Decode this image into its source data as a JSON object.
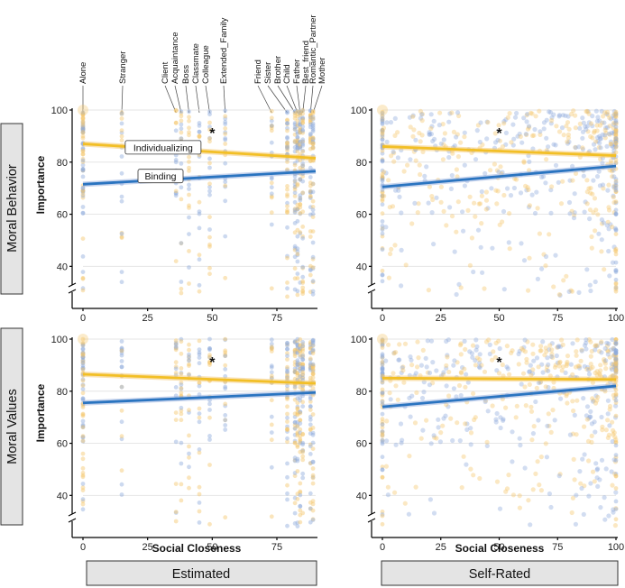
{
  "colors": {
    "individualizing": "#F2BF26",
    "binding": "#2A74C0",
    "ind_points": "#F4C66A",
    "bind_points": "#8FAADC"
  },
  "chart_data": {
    "type": "scatter",
    "layout": "2x2 facet grid",
    "ylabel": "Importance",
    "xlabel": "Social Closeness",
    "rows": [
      "Moral Behavior",
      "Moral Values"
    ],
    "cols": [
      "Estimated",
      "Self-Rated"
    ],
    "series": [
      "Individualizing",
      "Binding"
    ],
    "y_ticks": [
      "40",
      "60",
      "80",
      "100"
    ],
    "x_ticks": [
      "0",
      "25",
      "50",
      "75",
      "100"
    ],
    "estimated_xlim": [
      0,
      90
    ],
    "selfrated_xlim": [
      0,
      100
    ],
    "ylim": [
      28,
      100
    ],
    "significance_label": "*",
    "relationship_roles": [
      {
        "name": "Alone",
        "x": 0
      },
      {
        "name": "Stranger",
        "x": 15
      },
      {
        "name": "Client",
        "x": 36
      },
      {
        "name": "Acquaintance",
        "x": 38
      },
      {
        "name": "Boss",
        "x": 41
      },
      {
        "name": "Classmate",
        "x": 45
      },
      {
        "name": "Colleague",
        "x": 49
      },
      {
        "name": "Extended_Family",
        "x": 55
      },
      {
        "name": "Friend",
        "x": 73
      },
      {
        "name": "Sister",
        "x": 79
      },
      {
        "name": "Brother",
        "x": 82
      },
      {
        "name": "Child",
        "x": 83
      },
      {
        "name": "Father",
        "x": 84
      },
      {
        "name": "Best_friend",
        "x": 85
      },
      {
        "name": "Romantic_Partner",
        "x": 88
      },
      {
        "name": "Mother",
        "x": 89
      }
    ],
    "panels": [
      {
        "row": "Moral Behavior",
        "col": "Estimated",
        "lines": [
          {
            "series": "Individualizing",
            "x": [
              0,
              90
            ],
            "y": [
              87,
              81.5
            ]
          },
          {
            "series": "Binding",
            "x": [
              0,
              90
            ],
            "y": [
              71.5,
              76.5
            ]
          }
        ]
      },
      {
        "row": "Moral Behavior",
        "col": "Self-Rated",
        "lines": [
          {
            "series": "Individualizing",
            "x": [
              0,
              100
            ],
            "y": [
              86,
              82.5
            ]
          },
          {
            "series": "Binding",
            "x": [
              0,
              100
            ],
            "y": [
              70.5,
              78.5
            ]
          }
        ]
      },
      {
        "row": "Moral Values",
        "col": "Estimated",
        "lines": [
          {
            "series": "Individualizing",
            "x": [
              0,
              90
            ],
            "y": [
              86.5,
              83
            ]
          },
          {
            "series": "Binding",
            "x": [
              0,
              90
            ],
            "y": [
              75.5,
              79.5
            ]
          }
        ]
      },
      {
        "row": "Moral Values",
        "col": "Self-Rated",
        "lines": [
          {
            "series": "Individualizing",
            "x": [
              0,
              100
            ],
            "y": [
              85,
              84.5
            ]
          },
          {
            "series": "Binding",
            "x": [
              0,
              100
            ],
            "y": [
              74,
              82
            ]
          }
        ]
      }
    ]
  }
}
